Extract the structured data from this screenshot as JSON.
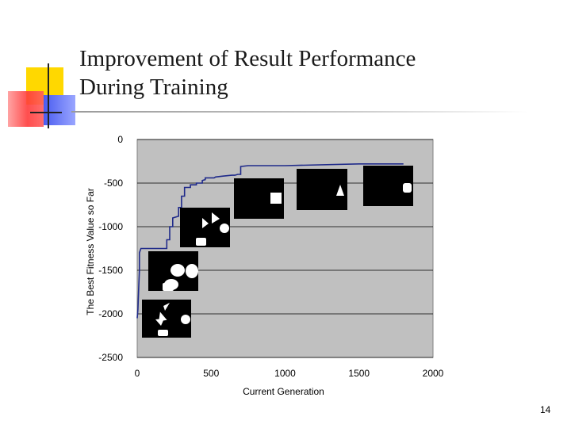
{
  "slide": {
    "title_lines": [
      "Improvement of Result Performance",
      "During Training"
    ],
    "page_number": "14"
  },
  "colors": {
    "plot_background": "#c0c0c0",
    "series": "#1f2a8a",
    "thumbnail_background": "#000000",
    "thumbnail_shapes": "#ffffff",
    "accent_yellow": "#ffd800",
    "accent_red": "#ff3b3b",
    "accent_blue": "#4a5cf0"
  },
  "chart_data": {
    "type": "line",
    "title": "",
    "xlabel": "Current Generation",
    "ylabel": "The Best Fitness Value so Far",
    "xlim": [
      0,
      2000
    ],
    "ylim": [
      -2500,
      0
    ],
    "xticks": [
      0,
      500,
      1000,
      1500,
      2000
    ],
    "yticks": [
      0,
      -500,
      -1000,
      -1500,
      -2000,
      -2500
    ],
    "grid": "horizontal",
    "legend": "none",
    "series": [
      {
        "x": [
          0,
          5,
          10,
          15,
          15,
          25,
          30,
          60,
          60,
          200,
          200,
          220,
          220,
          240,
          240,
          280,
          280,
          300,
          300,
          320,
          320,
          360,
          360,
          400,
          400,
          440,
          440,
          460,
          460,
          520,
          530,
          580,
          640,
          660,
          680,
          700,
          700,
          750,
          1000,
          1500,
          1800
        ],
        "y": [
          -2050,
          -1950,
          -1700,
          -1500,
          -1300,
          -1250,
          -1250,
          -1250,
          -1250,
          -1250,
          -1150,
          -1150,
          -1000,
          -1000,
          -900,
          -880,
          -780,
          -780,
          -650,
          -650,
          -550,
          -550,
          -520,
          -520,
          -500,
          -500,
          -470,
          -460,
          -440,
          -440,
          -430,
          -420,
          -410,
          -410,
          -400,
          -400,
          -310,
          -300,
          -300,
          -280,
          -280
        ]
      }
    ]
  }
}
